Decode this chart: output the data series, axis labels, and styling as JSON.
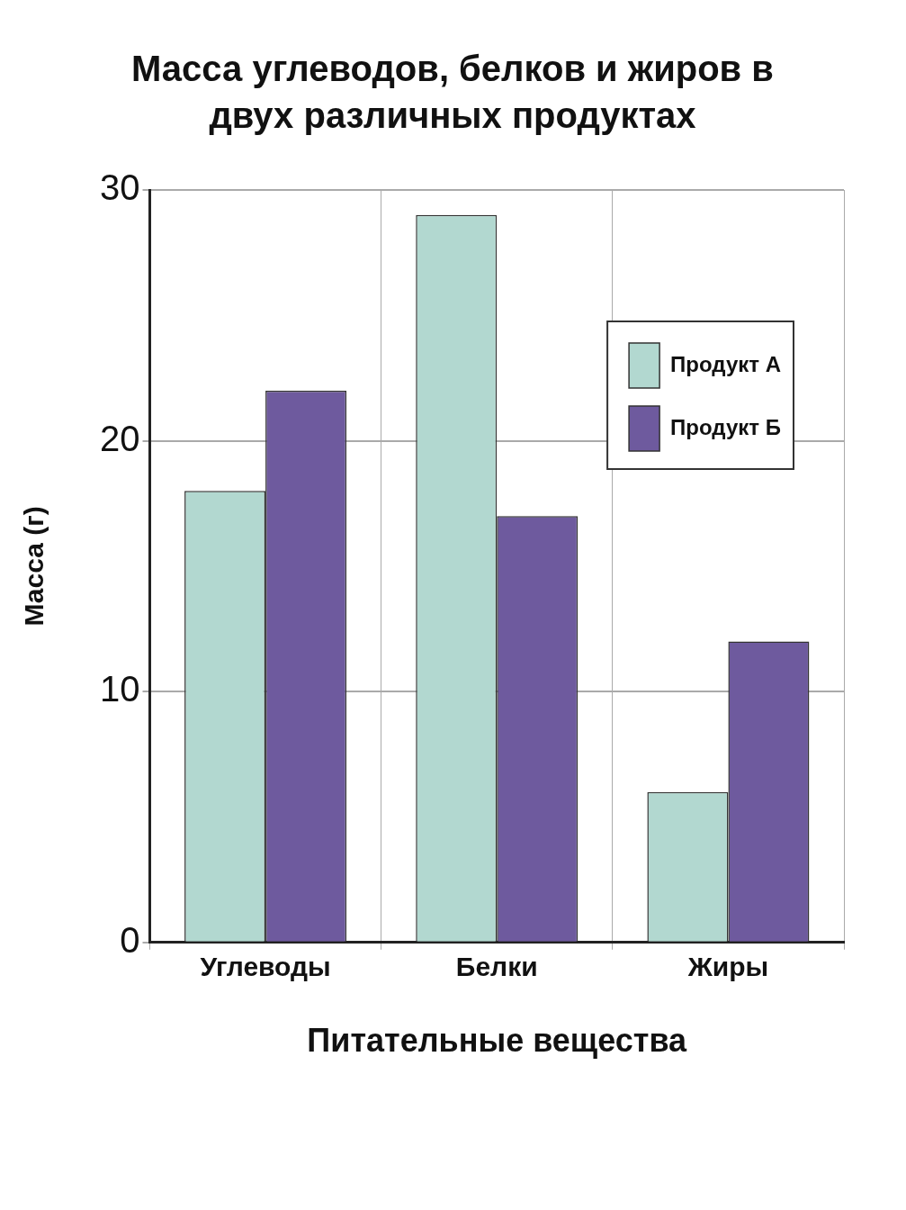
{
  "chart_data": {
    "type": "bar",
    "title": "Масса углеводов, белков и жиров в двух различных продуктах",
    "xlabel": "Питательные вещества",
    "ylabel": "Масса (г)",
    "categories": [
      "Углеводы",
      "Белки",
      "Жиры"
    ],
    "series": [
      {
        "name": "Продукт А",
        "color": "#b2d8d0",
        "values": [
          18,
          29,
          6
        ]
      },
      {
        "name": "Продукт Б",
        "color": "#6e5a9e",
        "values": [
          22,
          17,
          12
        ]
      }
    ],
    "ylim": [
      0,
      30
    ],
    "yticks": [
      0,
      10,
      20,
      30
    ],
    "grid": true,
    "legend": "top right"
  }
}
